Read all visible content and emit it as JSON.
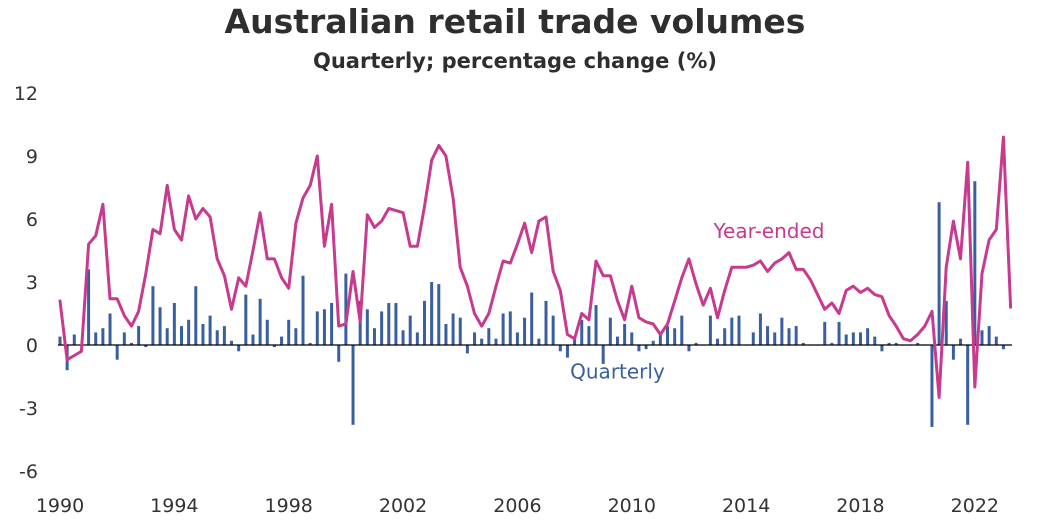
{
  "chart_data": {
    "type": "bar+line",
    "title": "Australian retail trade volumes",
    "subtitle": "Quarterly; percentage change (%)",
    "ylim": [
      -6,
      12
    ],
    "yticks": [
      "12",
      "9",
      "6",
      "3",
      "0",
      "-3",
      "-6"
    ],
    "xlim": [
      1990,
      2023.3
    ],
    "xticks": [
      "1990",
      "1994",
      "1998",
      "2002",
      "2006",
      "2010",
      "2014",
      "2018",
      "2022"
    ],
    "grid": false,
    "series": [
      {
        "name": "Quarterly",
        "kind": "bar",
        "color": "#3a5fa0",
        "start_year": 1990.0,
        "values": [
          0.4,
          -1.2,
          0.5,
          0.0,
          3.6,
          0.6,
          0.8,
          1.5,
          -0.7,
          0.6,
          0.1,
          0.9,
          -0.1,
          2.8,
          1.8,
          0.8,
          2.0,
          0.9,
          1.2,
          2.8,
          1.0,
          1.4,
          0.7,
          0.9,
          0.2,
          -0.3,
          2.4,
          0.5,
          2.2,
          1.2,
          -0.1,
          0.4,
          1.2,
          0.8,
          3.3,
          0.1,
          1.6,
          1.7,
          2.0,
          -0.8,
          3.4,
          -3.8,
          2.1,
          1.7,
          0.8,
          1.6,
          2.0,
          2.0,
          0.7,
          1.4,
          0.6,
          2.1,
          3.0,
          2.9,
          1.0,
          1.5,
          1.3,
          -0.4,
          0.6,
          0.3,
          0.8,
          0.3,
          1.5,
          1.6,
          0.6,
          1.3,
          2.5,
          0.3,
          2.1,
          1.4,
          -0.3,
          -0.6,
          0.3,
          1.2,
          0.9,
          1.9,
          -0.9,
          1.3,
          0.4,
          1.0,
          0.6,
          -0.3,
          -0.2,
          0.2,
          0.6,
          0.9,
          0.8,
          1.4,
          -0.3,
          0.1,
          0.0,
          1.4,
          0.3,
          0.8,
          1.3,
          1.4,
          0.0,
          0.6,
          1.5,
          0.9,
          0.6,
          1.3,
          0.8,
          0.9,
          0.1,
          0.0,
          0.0,
          1.1,
          0.1,
          1.1,
          0.5,
          0.6,
          0.6,
          0.8,
          0.4,
          -0.3,
          0.1,
          0.1,
          0.0,
          0.0,
          0.1,
          0.0,
          -3.9,
          6.8,
          2.1,
          -0.7,
          0.3,
          -3.8,
          7.8,
          0.7,
          0.9,
          0.4,
          -0.2
        ]
      },
      {
        "name": "Year-ended",
        "kind": "line",
        "color": "#c73a8e",
        "start_year": 1990.0,
        "values": [
          2.1,
          -0.7,
          -0.5,
          -0.3,
          4.8,
          5.2,
          6.7,
          2.2,
          2.2,
          1.4,
          0.9,
          1.6,
          3.4,
          5.5,
          5.3,
          7.6,
          5.5,
          5.0,
          7.1,
          6.0,
          6.5,
          6.1,
          4.1,
          3.3,
          1.7,
          3.2,
          2.8,
          4.5,
          6.3,
          4.1,
          4.1,
          3.2,
          2.7,
          5.8,
          7.0,
          7.6,
          9.0,
          4.7,
          6.7,
          0.9,
          1.0,
          3.5,
          1.1,
          6.2,
          5.6,
          5.9,
          6.5,
          6.4,
          6.3,
          4.7,
          4.7,
          6.6,
          8.8,
          9.5,
          9.0,
          7.0,
          3.7,
          2.8,
          1.5,
          0.9,
          1.5,
          2.8,
          4.0,
          3.9,
          4.8,
          5.8,
          4.4,
          5.9,
          6.1,
          3.5,
          2.6,
          0.5,
          0.3,
          1.5,
          1.2,
          4.0,
          3.3,
          3.3,
          2.1,
          1.2,
          2.8,
          1.3,
          1.1,
          1.0,
          0.5,
          1.0,
          2.1,
          3.2,
          4.1,
          2.9,
          1.9,
          2.7,
          1.3,
          2.6,
          3.7,
          3.7,
          3.7,
          3.8,
          4.0,
          3.5,
          3.9,
          4.1,
          4.4,
          3.6,
          3.6,
          3.1,
          2.4,
          1.7,
          2.0,
          1.5,
          2.6,
          2.8,
          2.5,
          2.7,
          2.4,
          2.3,
          1.4,
          0.9,
          0.3,
          0.2,
          0.5,
          0.9,
          1.6,
          -2.5,
          3.7,
          5.9,
          4.1,
          8.7,
          -2.0,
          3.4,
          5.0,
          5.5,
          9.9,
          1.8
        ]
      }
    ],
    "annotations": [
      {
        "series": "Year-ended",
        "text": "Year-ended",
        "x": 2014.8,
        "y": 5.1
      },
      {
        "series": "Quarterly",
        "text": "Quarterly",
        "x": 2009.5,
        "y": -1.6
      }
    ]
  }
}
